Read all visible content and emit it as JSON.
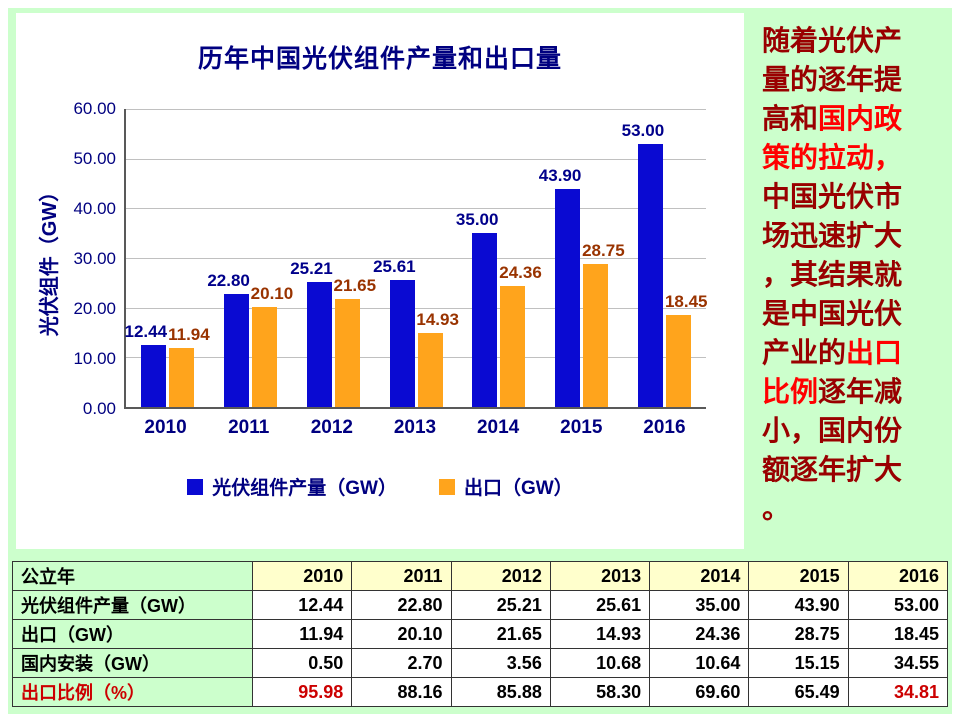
{
  "slide": {
    "bg_color": "#ccffcc"
  },
  "chart_data": {
    "type": "bar",
    "title": "历年中国光伏组件产量和出口量",
    "categories": [
      "2010",
      "2011",
      "2012",
      "2013",
      "2014",
      "2015",
      "2016"
    ],
    "series": [
      {
        "key": "production",
        "name": "光伏组件产量（GW）",
        "color": "#0a0ad2",
        "label_color": "#00008b",
        "values": [
          12.44,
          22.8,
          25.21,
          25.61,
          35.0,
          43.9,
          53.0
        ]
      },
      {
        "key": "export",
        "name": "出口（GW）",
        "color": "#ffa41c",
        "label_color": "#993300",
        "values": [
          11.94,
          20.1,
          21.65,
          14.93,
          24.36,
          28.75,
          18.45
        ]
      }
    ],
    "xlabel": "",
    "ylabel": "光伏组件（GW）",
    "ylim": [
      0,
      60
    ],
    "ytick_step": 10,
    "ytick_decimals": 2,
    "grid": true,
    "legend_position": "bottom"
  },
  "side_panel": {
    "text_color": "#990000",
    "highlight_color": "#ff0000",
    "full_text": "随着光伏产量的逐年提高和国内政策的拉动，中国光伏市场迅速扩大，其结果就是中国光伏产业的出口比例逐年减小，国内份额逐年扩大。",
    "lines": [
      [
        {
          "t": "随着光伏产",
          "h": false
        }
      ],
      [
        {
          "t": "量的逐年提",
          "h": false
        }
      ],
      [
        {
          "t": "高和",
          "h": false
        },
        {
          "t": "国内政",
          "h": true
        }
      ],
      [
        {
          "t": "策的拉动，",
          "h": true
        }
      ],
      [
        {
          "t": "中国光伏市",
          "h": false
        }
      ],
      [
        {
          "t": "场迅速扩大",
          "h": false
        }
      ],
      [
        {
          "t": "，其结果就",
          "h": false
        }
      ],
      [
        {
          "t": "是中国光伏",
          "h": false
        }
      ],
      [
        {
          "t": "产业的",
          "h": false
        },
        {
          "t": "出口",
          "h": true
        }
      ],
      [
        {
          "t": "比例",
          "h": true
        },
        {
          "t": "逐年减",
          "h": false
        }
      ],
      [
        {
          "t": "小，国内份",
          "h": false
        }
      ],
      [
        {
          "t": "额逐年扩大",
          "h": false
        }
      ],
      [
        {
          "t": "。",
          "h": false
        }
      ]
    ]
  },
  "table": {
    "red_color": "#cc0000",
    "header_row": {
      "label": "公立年",
      "values": [
        "2010",
        "2011",
        "2012",
        "2013",
        "2014",
        "2015",
        "2016"
      ]
    },
    "rows": [
      {
        "label": "光伏组件产量（GW）",
        "values": [
          "12.44",
          "22.80",
          "25.21",
          "25.61",
          "35.00",
          "43.90",
          "53.00"
        ]
      },
      {
        "label": "出口（GW）",
        "values": [
          "11.94",
          "20.10",
          "21.65",
          "14.93",
          "24.36",
          "28.75",
          "18.45"
        ]
      },
      {
        "label": "国内安装（GW）",
        "values": [
          "0.50",
          "2.70",
          "3.56",
          "10.68",
          "10.64",
          "15.15",
          "34.55"
        ]
      },
      {
        "label": "出口比例（%）",
        "label_red": true,
        "red_value_indices": [
          0,
          6
        ],
        "values": [
          "95.98",
          "88.16",
          "85.88",
          "58.30",
          "69.60",
          "65.49",
          "34.81"
        ]
      }
    ]
  }
}
